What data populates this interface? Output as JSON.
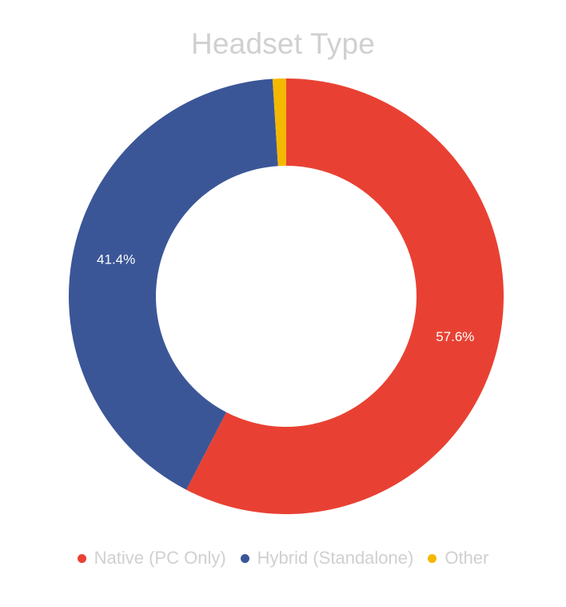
{
  "chart_data": {
    "type": "pie",
    "subtype": "donut",
    "title": "Headset Type",
    "legend_position": "bottom",
    "slices": [
      {
        "label": "Native (PC Only)",
        "value": 57.6,
        "display": "57.6%",
        "color": "#E84133"
      },
      {
        "label": "Hybrid (Standalone)",
        "value": 41.4,
        "display": "41.4%",
        "color": "#3B5697"
      },
      {
        "label": "Other",
        "value": 1.0,
        "display": "",
        "color": "#F5B800"
      }
    ]
  }
}
